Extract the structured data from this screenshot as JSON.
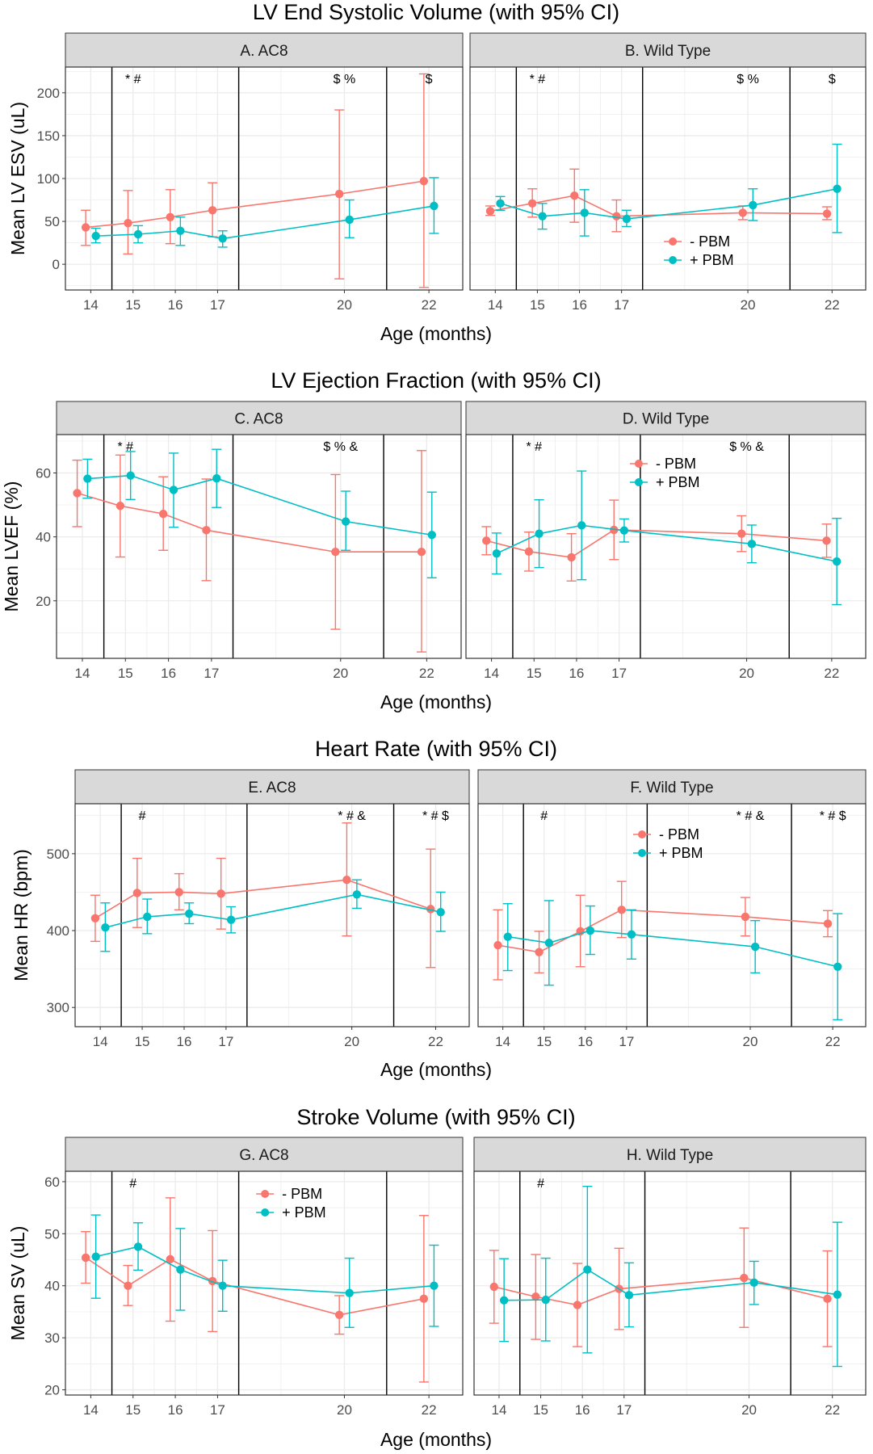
{
  "colors": {
    "minus_pbm": "#F8766D",
    "plus_pbm": "#00BFC4",
    "strip_fill": "#D9D9D9",
    "grid": "#EBEBEB",
    "border": "#333333"
  },
  "chart_data": [
    {
      "type": "line",
      "title": "LV End Systolic Volume (with 95% CI)",
      "xlabel": "Age (months)",
      "ylabel": "Mean LV ESV (uL)",
      "ylim": [
        -30,
        230
      ],
      "yticks": [
        0,
        50,
        100,
        150,
        200
      ],
      "xticks": [
        14,
        15,
        16,
        17,
        20,
        22
      ],
      "xlim": [
        13.4,
        22.8
      ],
      "vlines": [
        14.5,
        17.5,
        21.0
      ],
      "panels": [
        {
          "strip": "A. AC8",
          "legend": "none",
          "annotations": [
            {
              "x": 15,
              "label": "* #"
            },
            {
              "x": 20,
              "label": "$ %"
            },
            {
              "x": 22,
              "label": "$"
            }
          ],
          "series": [
            {
              "name": "- PBM",
              "x": [
                14,
                15,
                16,
                17,
                20,
                22
              ],
              "values": [
                43,
                48,
                55,
                63,
                82,
                97
              ],
              "lower": [
                22,
                12,
                24,
                32,
                -17,
                -27
              ],
              "upper": [
                63,
                86,
                87,
                95,
                180,
                222
              ]
            },
            {
              "name": "+ PBM",
              "x": [
                14,
                15,
                16,
                17,
                20,
                22
              ],
              "values": [
                33,
                35,
                39,
                30,
                52,
                68
              ],
              "lower": [
                25,
                25,
                22,
                20,
                31,
                36
              ],
              "upper": [
                42,
                45,
                55,
                39,
                75,
                101
              ]
            }
          ]
        },
        {
          "strip": "B. Wild Type",
          "legend": "inside-bottom-right",
          "annotations": [
            {
              "x": 15,
              "label": "* #"
            },
            {
              "x": 20,
              "label": "$ %"
            },
            {
              "x": 22,
              "label": "$"
            }
          ],
          "series": [
            {
              "name": "- PBM",
              "x": [
                14,
                15,
                16,
                17,
                20,
                22
              ],
              "values": [
                62,
                71,
                80,
                56,
                60,
                59
              ],
              "lower": [
                57,
                55,
                49,
                38,
                52,
                52
              ],
              "upper": [
                68,
                88,
                111,
                75,
                68,
                67
              ]
            },
            {
              "name": "+ PBM",
              "x": [
                14,
                15,
                16,
                17,
                20,
                22
              ],
              "values": [
                71,
                56,
                60,
                53,
                69,
                88
              ],
              "lower": [
                63,
                41,
                33,
                44,
                51,
                37
              ],
              "upper": [
                79,
                71,
                87,
                63,
                88,
                140
              ]
            }
          ]
        }
      ],
      "legend_entries": [
        "- PBM",
        "+ PBM"
      ]
    },
    {
      "type": "line",
      "title": "LV Ejection Fraction (with 95% CI)",
      "xlabel": "Age (months)",
      "ylabel": "Mean LVEF (%)",
      "ylim": [
        2,
        72
      ],
      "yticks": [
        20,
        40,
        60
      ],
      "xticks": [
        14,
        15,
        16,
        17,
        20,
        22
      ],
      "xlim": [
        13.4,
        22.8
      ],
      "vlines": [
        14.5,
        17.5,
        21.0
      ],
      "panels": [
        {
          "strip": "C. AC8",
          "legend": "none",
          "annotations": [
            {
              "x": 15,
              "label": "* #"
            },
            {
              "x": 20,
              "label": "$ % &"
            }
          ],
          "series": [
            {
              "name": "- PBM",
              "x": [
                14,
                15,
                16,
                17,
                20,
                22
              ],
              "values": [
                53.7,
                49.7,
                47.2,
                42.1,
                35.3,
                35.3
              ],
              "lower": [
                43.2,
                33.7,
                35.8,
                26.3,
                11.1,
                4.0
              ],
              "upper": [
                64.0,
                65.6,
                58.8,
                58.1,
                59.5,
                67.0
              ]
            },
            {
              "name": "+ PBM",
              "x": [
                14,
                15,
                16,
                17,
                20,
                22
              ],
              "values": [
                58.2,
                59.2,
                54.7,
                58.3,
                44.8,
                40.6
              ],
              "lower": [
                52.1,
                51.7,
                43.0,
                49.2,
                35.8,
                27.2
              ],
              "upper": [
                64.3,
                66.7,
                66.2,
                67.4,
                54.3,
                54.0
              ]
            }
          ]
        },
        {
          "strip": "D. Wild Type",
          "legend": "inside-top",
          "annotations": [
            {
              "x": 15,
              "label": "* #"
            },
            {
              "x": 20,
              "label": "$ % &"
            }
          ],
          "series": [
            {
              "name": "- PBM",
              "x": [
                14,
                15,
                16,
                17,
                20,
                22
              ],
              "values": [
                38.8,
                35.4,
                33.6,
                42.2,
                41.0,
                38.8
              ],
              "lower": [
                34.4,
                29.3,
                26.2,
                32.9,
                35.4,
                33.6
              ],
              "upper": [
                43.2,
                41.5,
                41.0,
                51.5,
                46.6,
                44.0
              ]
            },
            {
              "name": "+ PBM",
              "x": [
                14,
                15,
                16,
                17,
                20,
                22
              ],
              "values": [
                34.8,
                41.0,
                43.6,
                42.0,
                37.8,
                32.3
              ],
              "lower": [
                28.4,
                30.4,
                26.6,
                38.4,
                31.9,
                18.8
              ],
              "upper": [
                41.2,
                51.6,
                60.6,
                45.6,
                43.7,
                45.8
              ]
            }
          ]
        }
      ],
      "legend_entries": [
        "- PBM",
        "+ PBM"
      ]
    },
    {
      "type": "line",
      "title": "Heart Rate (with 95% CI)",
      "xlabel": "Age (months)",
      "ylabel": "Mean HR (bpm)",
      "ylim": [
        275,
        565
      ],
      "yticks": [
        300,
        400,
        500
      ],
      "xticks": [
        14,
        15,
        16,
        17,
        20,
        22
      ],
      "xlim": [
        13.4,
        22.8
      ],
      "vlines": [
        14.5,
        17.5,
        21.0
      ],
      "panels": [
        {
          "strip": "E. AC8",
          "legend": "none",
          "annotations": [
            {
              "x": 15,
              "label": "#"
            },
            {
              "x": 20,
              "label": "* # &"
            },
            {
              "x": 22,
              "label": "* # $"
            }
          ],
          "series": [
            {
              "name": "- PBM",
              "x": [
                14,
                15,
                16,
                17,
                20,
                22
              ],
              "values": [
                416,
                449,
                450,
                448,
                466,
                428
              ],
              "lower": [
                386,
                404,
                427,
                402,
                393,
                352
              ],
              "upper": [
                446,
                494,
                474,
                494,
                540,
                506
              ]
            },
            {
              "name": "+ PBM",
              "x": [
                14,
                15,
                16,
                17,
                20,
                22
              ],
              "values": [
                404,
                418,
                422,
                414,
                447,
                424
              ],
              "lower": [
                373,
                396,
                409,
                397,
                429,
                399
              ],
              "upper": [
                436,
                441,
                436,
                431,
                466,
                450
              ]
            }
          ]
        },
        {
          "strip": "F. Wild Type",
          "legend": "inside-top",
          "annotations": [
            {
              "x": 15,
              "label": "#"
            },
            {
              "x": 20,
              "label": "* # &"
            },
            {
              "x": 22,
              "label": "* # $"
            }
          ],
          "series": [
            {
              "name": "- PBM",
              "x": [
                14,
                15,
                16,
                17,
                20,
                22
              ],
              "values": [
                381,
                372,
                399,
                427,
                418,
                409
              ],
              "lower": [
                336,
                345,
                353,
                391,
                393,
                392
              ],
              "upper": [
                427,
                399,
                446,
                464,
                443,
                426
              ]
            },
            {
              "name": "+ PBM",
              "x": [
                14,
                15,
                16,
                17,
                20,
                22
              ],
              "values": [
                392,
                384,
                400,
                395,
                379,
                353
              ],
              "lower": [
                348,
                329,
                369,
                363,
                345,
                284
              ],
              "upper": [
                435,
                439,
                432,
                427,
                413,
                422
              ]
            }
          ]
        }
      ],
      "legend_entries": [
        "- PBM",
        "+ PBM"
      ]
    },
    {
      "type": "line",
      "title": "Stroke Volume (with 95% CI)",
      "xlabel": "Age (months)",
      "ylabel": "Mean SV (uL)",
      "ylim": [
        19,
        62
      ],
      "yticks": [
        20,
        30,
        40,
        50,
        60
      ],
      "xticks": [
        14,
        15,
        16,
        17,
        20,
        22
      ],
      "xlim": [
        13.4,
        22.8
      ],
      "vlines": [
        14.5,
        17.5,
        21.0
      ],
      "panels": [
        {
          "strip": "G. AC8",
          "legend": "inside-top",
          "annotations": [
            {
              "x": 15,
              "label": "#"
            }
          ],
          "series": [
            {
              "name": "- PBM",
              "x": [
                14,
                15,
                16,
                17,
                20,
                22
              ],
              "values": [
                45.4,
                40.0,
                45.1,
                40.9,
                34.4,
                37.5
              ],
              "lower": [
                40.5,
                36.2,
                33.2,
                31.2,
                30.7,
                21.5
              ],
              "upper": [
                50.4,
                43.9,
                56.9,
                50.6,
                38.1,
                53.5
              ]
            },
            {
              "name": "+ PBM",
              "x": [
                14,
                15,
                16,
                17,
                20,
                22
              ],
              "values": [
                45.6,
                47.5,
                43.1,
                40.0,
                38.6,
                40.0
              ],
              "lower": [
                37.6,
                43.0,
                35.3,
                35.1,
                32.0,
                32.2
              ],
              "upper": [
                53.6,
                52.1,
                51.0,
                44.9,
                45.3,
                47.8
              ]
            }
          ]
        },
        {
          "strip": "H. Wild Type",
          "legend": "none",
          "annotations": [
            {
              "x": 15,
              "label": "#"
            }
          ],
          "series": [
            {
              "name": "- PBM",
              "x": [
                14,
                15,
                16,
                17,
                20,
                22
              ],
              "values": [
                39.8,
                37.9,
                36.3,
                39.4,
                41.5,
                37.5
              ],
              "lower": [
                32.8,
                29.7,
                28.3,
                31.6,
                32.0,
                28.3
              ],
              "upper": [
                46.8,
                46.0,
                44.3,
                47.2,
                51.1,
                46.7
              ]
            },
            {
              "name": "+ PBM",
              "x": [
                14,
                15,
                16,
                17,
                20,
                22
              ],
              "values": [
                37.2,
                37.3,
                43.1,
                38.2,
                40.6,
                38.3
              ],
              "lower": [
                29.3,
                29.4,
                27.1,
                32.1,
                36.4,
                24.5
              ],
              "upper": [
                45.2,
                45.3,
                59.1,
                44.4,
                44.7,
                52.2
              ]
            }
          ]
        }
      ],
      "legend_entries": [
        "- PBM",
        "+ PBM"
      ]
    }
  ]
}
